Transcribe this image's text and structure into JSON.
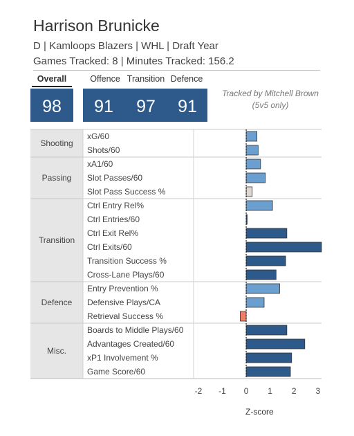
{
  "header": {
    "player_name": "Harrison Brunicke",
    "subtitle": "D | Kamloops Blazers | WHL | Draft Year",
    "games_line": "Games Tracked: 8 | Minutes Tracked: 156.2",
    "tracked_by": "Tracked by Mitchell Brown",
    "tracked_note": "(5v5 only)"
  },
  "scores": {
    "overall_label": "Overall",
    "overall": "98",
    "offence_label": "Offence",
    "offence": "91",
    "transition_label": "Transition",
    "transition": "97",
    "defence_label": "Defence",
    "defence": "91"
  },
  "colors": {
    "score_box": "#2d5a8a",
    "bar_dark": "#2d5a8a",
    "bar_medium": "#6a9fd0",
    "bar_light": "#e0d6d2",
    "bar_negative": "#f08068",
    "group_band": "#e6e6e6"
  },
  "chart_data": {
    "type": "bar",
    "orientation": "horizontal",
    "xlabel": "Z-score",
    "xlim": [
      -2.2,
      3.15
    ],
    "xticks": [
      -2,
      -1,
      0,
      1,
      2,
      3
    ],
    "zero_line": "dotted",
    "groups": [
      {
        "name": "Shooting",
        "metrics": [
          {
            "label": "xG/60",
            "value": 0.45,
            "color": "#6a9fd0"
          },
          {
            "label": "Shots/60",
            "value": 0.5,
            "color": "#6a9fd0"
          }
        ]
      },
      {
        "name": "Passing",
        "metrics": [
          {
            "label": "xA1/60",
            "value": 0.6,
            "color": "#6a9fd0"
          },
          {
            "label": "Slot Passes/60",
            "value": 0.8,
            "color": "#6a9fd0"
          },
          {
            "label": "Slot Pass Success %",
            "value": 0.25,
            "color": "#e0d6d2"
          }
        ]
      },
      {
        "name": "Transition",
        "metrics": [
          {
            "label": "Ctrl Entry Rel%",
            "value": 1.1,
            "color": "#6a9fd0"
          },
          {
            "label": "Ctrl Entries/60",
            "value": 0.04,
            "color": "#2d5a8a"
          },
          {
            "label": "Ctrl Exit Rel%",
            "value": 1.7,
            "color": "#2d5a8a"
          },
          {
            "label": "Ctrl Exits/60",
            "value": 3.15,
            "color": "#2d5a8a"
          },
          {
            "label": "Transition Success %",
            "value": 1.65,
            "color": "#2d5a8a"
          },
          {
            "label": "Cross-Lane Plays/60",
            "value": 1.25,
            "color": "#2d5a8a"
          }
        ]
      },
      {
        "name": "Defence",
        "metrics": [
          {
            "label": "Entry Prevention %",
            "value": 1.4,
            "color": "#6a9fd0"
          },
          {
            "label": "Defensive Plays/CA",
            "value": 0.75,
            "color": "#6a9fd0"
          },
          {
            "label": "Retrieval Success %",
            "value": -0.25,
            "color": "#f08068"
          }
        ]
      },
      {
        "name": "Misc.",
        "metrics": [
          {
            "label": "Boards to Middle Plays/60",
            "value": 1.7,
            "color": "#2d5a8a"
          },
          {
            "label": "Advantages Created/60",
            "value": 2.45,
            "color": "#2d5a8a"
          },
          {
            "label": "xP1 Involvement %",
            "value": 1.9,
            "color": "#2d5a8a"
          },
          {
            "label": "Game Score/60",
            "value": 1.85,
            "color": "#2d5a8a"
          }
        ]
      }
    ]
  }
}
